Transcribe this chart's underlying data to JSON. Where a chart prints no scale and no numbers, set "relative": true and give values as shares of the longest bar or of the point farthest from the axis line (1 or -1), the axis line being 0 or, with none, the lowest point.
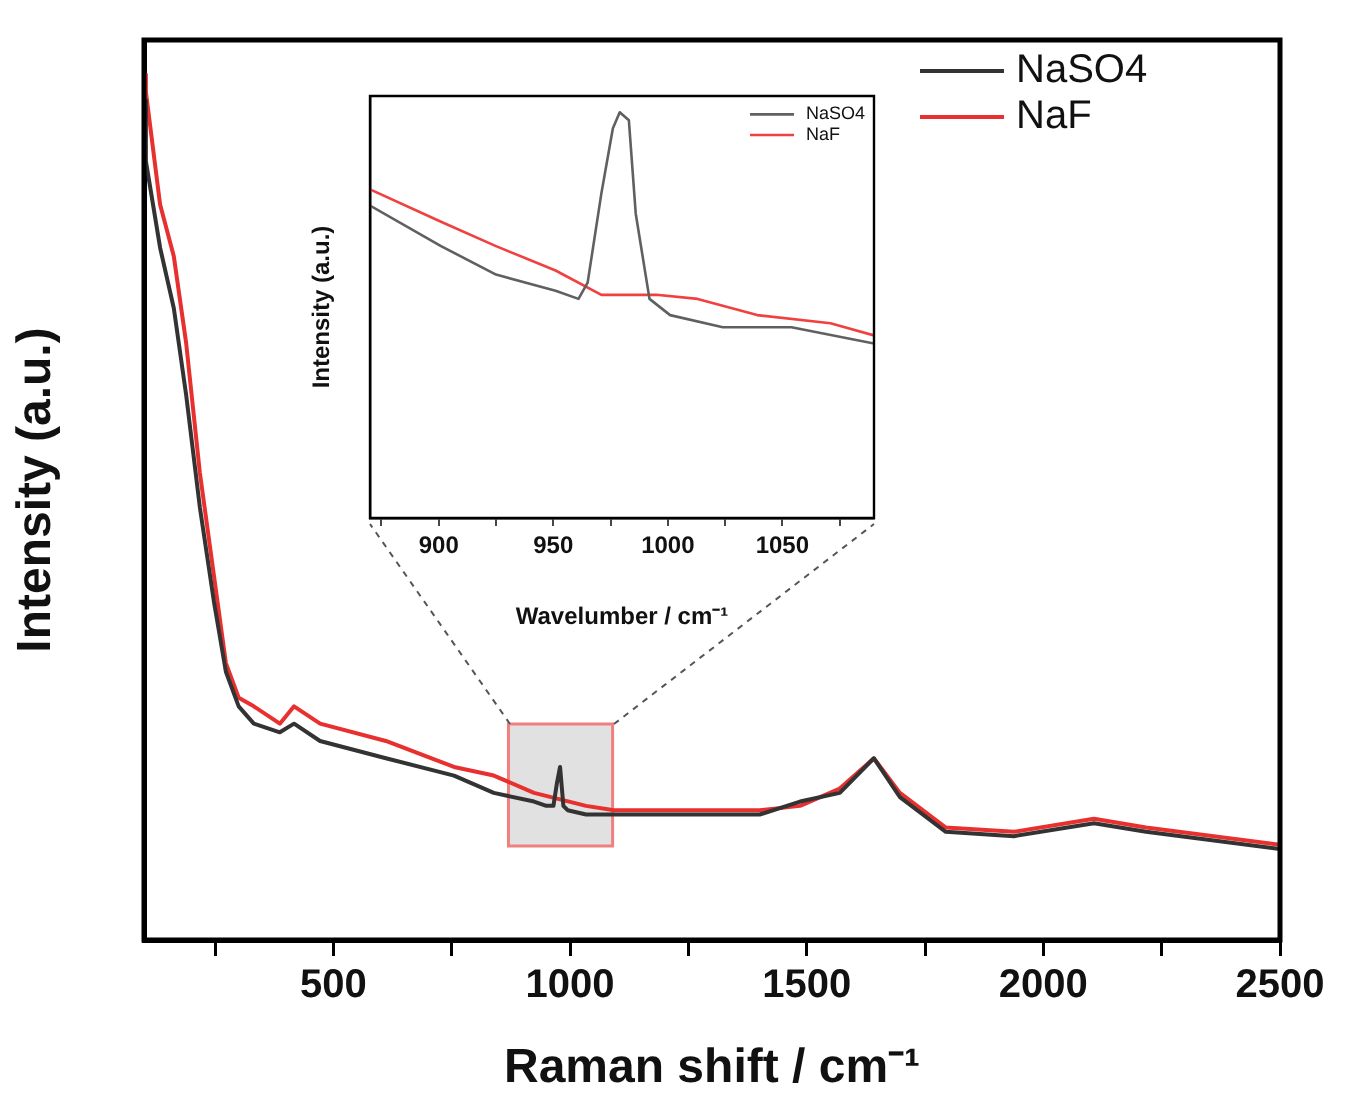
{
  "chart_data": [
    {
      "type": "line",
      "xlabel": "Raman shift / cm⁻¹",
      "ylabel": "Intensity (a.u.)",
      "relative": true,
      "legend": "top right",
      "grid": false,
      "bands": [
        {
          "axis": "x",
          "from": 870,
          "to": 1090,
          "color": "#c8c8c8"
        }
      ],
      "xlim": [
        100,
        2500
      ],
      "xticks": [
        {
          "value": 250,
          "label": null
        },
        500,
        {
          "value": 750,
          "label": null
        },
        1000,
        {
          "value": 1250,
          "label": null
        },
        1500,
        {
          "value": 1750,
          "label": null
        },
        2000,
        {
          "value": 2250,
          "label": null
        },
        2500
      ],
      "series": [
        {
          "name": "NaSO4",
          "color": "#333333",
          "x": [
            100,
            104,
            134,
            163,
            189,
            218,
            248,
            273,
            300,
            332,
            387,
            417,
            472,
            611,
            755,
            839,
            924,
            950,
            965,
            972,
            979,
            986,
            995,
            1034,
            1093,
            1177,
            1401,
            1486,
            1570,
            1642,
            1697,
            1794,
            1938,
            2107,
            2217,
            2500
          ],
          "values": [
            0.97,
            0.9,
            0.8,
            0.73,
            0.63,
            0.5,
            0.39,
            0.31,
            0.27,
            0.25,
            0.24,
            0.25,
            0.23,
            0.21,
            0.19,
            0.17,
            0.16,
            0.155,
            0.155,
            0.18,
            0.2,
            0.155,
            0.15,
            0.145,
            0.145,
            0.145,
            0.145,
            0.16,
            0.17,
            0.21,
            0.165,
            0.125,
            0.12,
            0.135,
            0.125,
            0.105
          ]
        },
        {
          "name": "NaF",
          "color": "#e8302f",
          "x": [
            100,
            104,
            134,
            163,
            189,
            218,
            248,
            273,
            300,
            332,
            387,
            417,
            472,
            611,
            755,
            839,
            924,
            1034,
            1093,
            1177,
            1401,
            1486,
            1570,
            1642,
            1697,
            1794,
            1938,
            2107,
            2217,
            2500
          ],
          "values": [
            1.0,
            0.98,
            0.85,
            0.79,
            0.69,
            0.54,
            0.42,
            0.32,
            0.28,
            0.27,
            0.25,
            0.27,
            0.25,
            0.23,
            0.2,
            0.19,
            0.17,
            0.155,
            0.15,
            0.15,
            0.15,
            0.155,
            0.175,
            0.21,
            0.17,
            0.13,
            0.125,
            0.14,
            0.13,
            0.11
          ]
        }
      ]
    },
    {
      "type": "line",
      "xlabel": "Wavelumber / cm⁻¹",
      "ylabel": "Intensity (a.u.)",
      "relative": true,
      "legend": "top right",
      "grid": false,
      "xlim": [
        870,
        1090
      ],
      "xticks": [
        {
          "value": 875,
          "label": null
        },
        900,
        {
          "value": 925,
          "label": null
        },
        950,
        {
          "value": 975,
          "label": null
        },
        1000,
        {
          "value": 1025,
          "label": null
        },
        1050,
        {
          "value": 1075,
          "label": null
        }
      ],
      "series": [
        {
          "name": "NaSO4",
          "color": "#606060",
          "x": [
            870,
            901,
            925,
            951,
            961,
            965,
            971,
            976,
            979,
            983,
            986,
            992,
            1001,
            1024,
            1054,
            1090
          ],
          "values": [
            0.77,
            0.67,
            0.6,
            0.56,
            0.54,
            0.58,
            0.8,
            0.96,
            1.0,
            0.98,
            0.75,
            0.54,
            0.5,
            0.47,
            0.47,
            0.43
          ]
        },
        {
          "name": "NaF",
          "color": "#f04040",
          "x": [
            870,
            901,
            925,
            951,
            971,
            995,
            1013,
            1039,
            1071,
            1090
          ],
          "values": [
            0.81,
            0.73,
            0.67,
            0.61,
            0.55,
            0.55,
            0.54,
            0.5,
            0.48,
            0.45
          ]
        }
      ]
    }
  ]
}
